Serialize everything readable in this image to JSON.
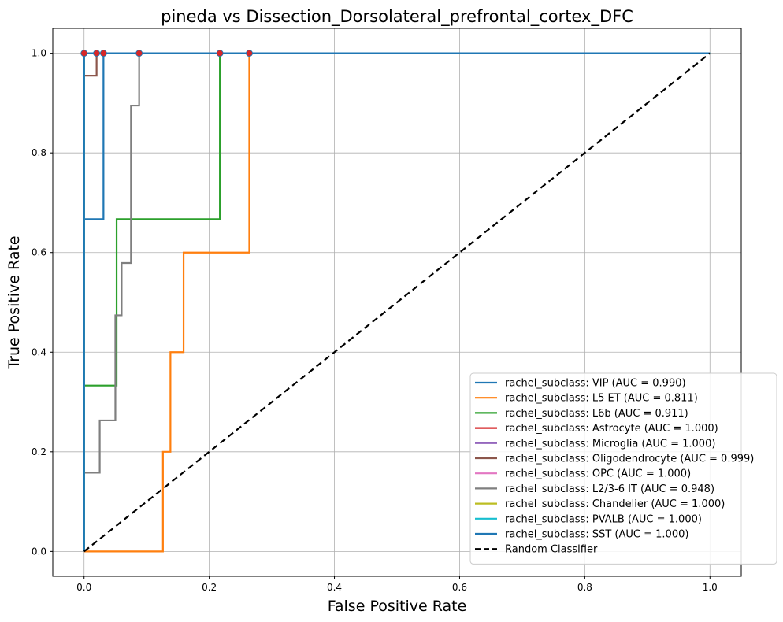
{
  "chart_data": {
    "type": "line",
    "title": "pineda vs Dissection_Dorsolateral_prefrontal_cortex_DFC",
    "xlabel": "False Positive Rate",
    "ylabel": "True Positive Rate",
    "xlim": [
      -0.05,
      1.05
    ],
    "ylim": [
      -0.05,
      1.05
    ],
    "xticks": [
      0.0,
      0.2,
      0.4,
      0.6,
      0.8,
      1.0
    ],
    "xtick_labels": [
      "0.0",
      "0.2",
      "0.4",
      "0.6",
      "0.8",
      "1.0"
    ],
    "yticks": [
      0.0,
      0.2,
      0.4,
      0.6,
      0.8,
      1.0
    ],
    "ytick_labels": [
      "0.0",
      "0.2",
      "0.4",
      "0.6",
      "0.8",
      "1.0"
    ],
    "grid": true,
    "legend_position": "lower-right",
    "series": [
      {
        "name": "rachel_subclass: VIP (AUC = 0.990)",
        "color": "#1f77b4",
        "x": [
          0,
          0,
          0.031,
          0.031,
          1.0
        ],
        "y": [
          0,
          0.667,
          0.667,
          1.0,
          1.0
        ]
      },
      {
        "name": "rachel_subclass: L5 ET (AUC = 0.811)",
        "color": "#ff7f0e",
        "x": [
          0,
          0.126,
          0.126,
          0.138,
          0.138,
          0.159,
          0.159,
          0.264,
          0.264,
          1.0
        ],
        "y": [
          0,
          0,
          0.2,
          0.2,
          0.4,
          0.4,
          0.6,
          0.6,
          1.0,
          1.0
        ]
      },
      {
        "name": "rachel_subclass: L6b (AUC = 0.911)",
        "color": "#2ca02c",
        "x": [
          0,
          0,
          0.052,
          0.052,
          0.217,
          0.217,
          1.0
        ],
        "y": [
          0,
          0.333,
          0.333,
          0.667,
          0.667,
          1.0,
          1.0
        ]
      },
      {
        "name": "rachel_subclass: Astrocyte (AUC = 1.000)",
        "color": "#d62728",
        "x": [
          0,
          0,
          1.0
        ],
        "y": [
          0,
          1.0,
          1.0
        ]
      },
      {
        "name": "rachel_subclass: Microglia (AUC = 1.000)",
        "color": "#9467bd",
        "x": [
          0,
          0,
          1.0
        ],
        "y": [
          0,
          1.0,
          1.0
        ]
      },
      {
        "name": "rachel_subclass: Oligodendrocyte (AUC = 0.999)",
        "color": "#8c564b",
        "x": [
          0,
          0,
          0.02,
          0.02,
          1.0
        ],
        "y": [
          0,
          0.955,
          0.955,
          1.0,
          1.0
        ]
      },
      {
        "name": "rachel_subclass: OPC (AUC = 1.000)",
        "color": "#e377c2",
        "x": [
          0,
          0,
          1.0
        ],
        "y": [
          0,
          1.0,
          1.0
        ]
      },
      {
        "name": "rachel_subclass: L2/3-6 IT (AUC = 0.948)",
        "color": "#7f7f7f",
        "x": [
          0,
          0,
          0.025,
          0.025,
          0.05,
          0.05,
          0.06,
          0.06,
          0.075,
          0.075,
          0.088,
          0.088,
          1.0
        ],
        "y": [
          0,
          0.158,
          0.158,
          0.263,
          0.263,
          0.474,
          0.474,
          0.579,
          0.579,
          0.895,
          0.895,
          1.0,
          1.0
        ]
      },
      {
        "name": "rachel_subclass: Chandelier (AUC = 1.000)",
        "color": "#bcbd22",
        "x": [
          0,
          0,
          1.0
        ],
        "y": [
          0,
          1.0,
          1.0
        ]
      },
      {
        "name": "rachel_subclass: PVALB (AUC = 1.000)",
        "color": "#17becf",
        "x": [
          0,
          0,
          1.0
        ],
        "y": [
          0,
          1.0,
          1.0
        ]
      },
      {
        "name": "rachel_subclass: SST (AUC = 1.000)",
        "color": "#1f77b4",
        "x": [
          0,
          0,
          1.0
        ],
        "y": [
          0,
          1.0,
          1.0
        ]
      }
    ],
    "reference_line": {
      "name": "Random Classifier",
      "color": "#000000",
      "style": "dashed",
      "x": [
        0,
        1
      ],
      "y": [
        0,
        1
      ]
    },
    "markers": {
      "color": "#d62728",
      "points": [
        [
          0.0,
          1.0
        ],
        [
          0.02,
          1.0
        ],
        [
          0.031,
          1.0
        ],
        [
          0.088,
          1.0
        ],
        [
          0.217,
          1.0
        ],
        [
          0.264,
          1.0
        ]
      ]
    }
  }
}
